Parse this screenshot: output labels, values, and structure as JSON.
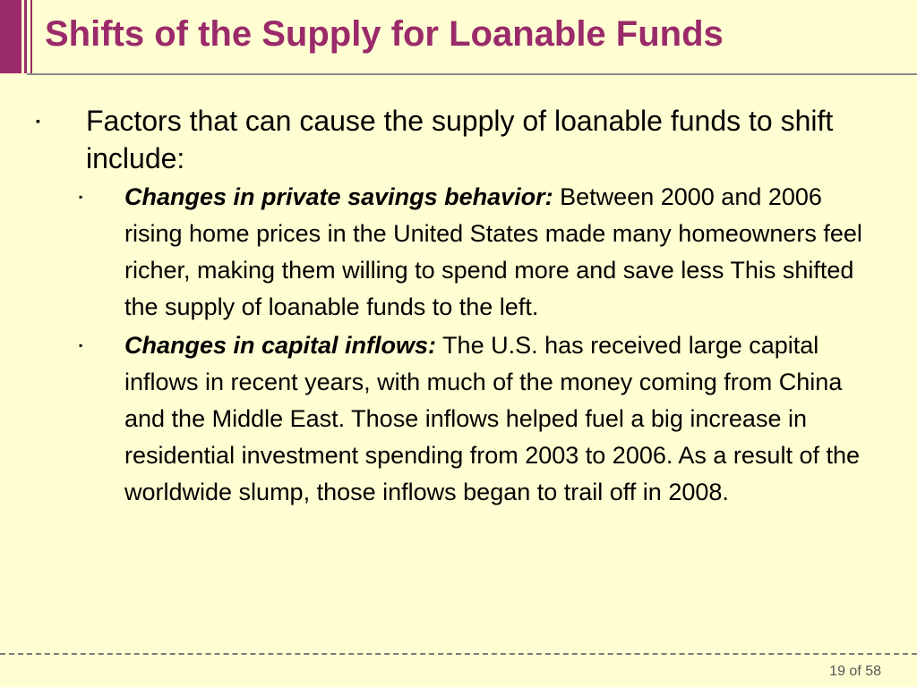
{
  "slide": {
    "title": "Shifts of the Supply for Loanable Funds",
    "main_bullet": "Factors that can cause the supply of loanable funds to shift include:",
    "sub_bullets": [
      {
        "lead": "Changes in private savings behavior:",
        "text": " Between 2000 and 2006 rising home prices in the United States made many homeowners feel richer, making them willing to spend more and save less This shifted the supply of loanable funds to the left."
      },
      {
        "lead": "Changes in capital inflows:",
        "text": " The U.S. has received large capital inflows in recent years, with much of the money coming from China and the Middle East. Those inflows helped fuel a big increase in residential investment spending from 2003 to 2006. As a result of the worldwide slump, those inflows began to trail off in 2008."
      }
    ]
  },
  "footer": {
    "page_number": "19 of 58"
  },
  "colors": {
    "title": "#9a2a69",
    "background": "#fefed2",
    "rule": "#8a8a8a"
  },
  "icons": {
    "bullet": "square-bullet-icon"
  }
}
